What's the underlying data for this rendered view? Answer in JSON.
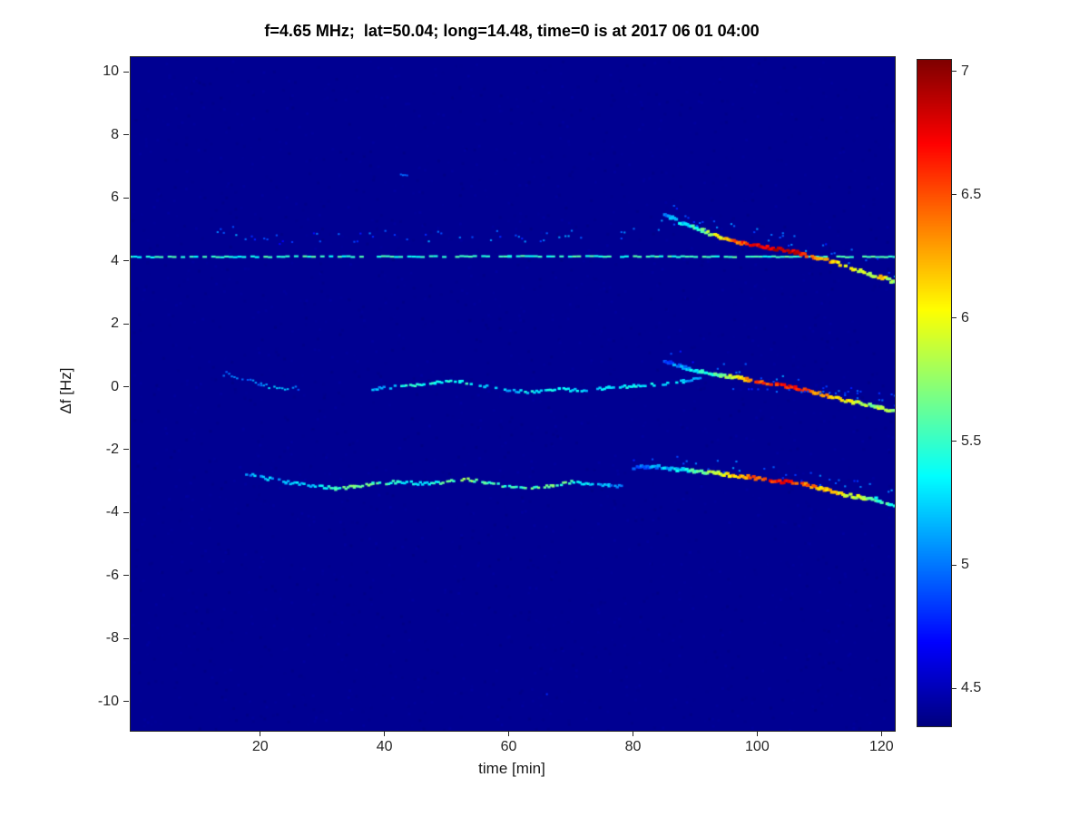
{
  "chart_data": {
    "type": "heatmap",
    "title": "f=4.65 MHz;  lat=50.04; long=14.48, time=0 is at 2017 06 01 04:00",
    "xlabel": "time [min]",
    "ylabel": "Δf [Hz]",
    "xlim": [
      -1,
      122
    ],
    "ylim": [
      -10.9,
      10.5
    ],
    "clim": [
      4.35,
      7.05
    ],
    "xticks": [
      20,
      40,
      60,
      80,
      100,
      120
    ],
    "yticks": [
      10,
      8,
      6,
      4,
      2,
      0,
      -2,
      -4,
      -6,
      -8,
      -10
    ],
    "grid": false,
    "colormap": "jet",
    "background_value": 4.4,
    "colorbar": {
      "position": "right",
      "ticks": [
        4.5,
        5,
        5.5,
        6,
        6.5,
        7
      ]
    },
    "traces": [
      {
        "name": "carrier-reference-line",
        "type": "dash",
        "step": 0.7,
        "gap": 0.22,
        "jitter_f": 0.03,
        "jitter_v": 0.25,
        "points": [
          [
            -1,
            4.15,
            5.45
          ],
          [
            60,
            4.17,
            5.5
          ],
          [
            122,
            4.15,
            5.5
          ]
        ]
      },
      {
        "name": "upper-band-speckle",
        "type": "speckle",
        "size": 2.2,
        "step": 0.5,
        "gap": 0.62,
        "jitter_f": 0.35,
        "jitter_v": 0.4,
        "points": [
          [
            12,
            5.0,
            4.85
          ],
          [
            16,
            4.95,
            5.0
          ],
          [
            20,
            4.75,
            4.9
          ],
          [
            25,
            4.7,
            4.8
          ],
          [
            30,
            4.8,
            4.85
          ],
          [
            36,
            4.75,
            4.9
          ],
          [
            42,
            4.85,
            4.95
          ],
          [
            48,
            4.8,
            5.0
          ],
          [
            54,
            4.9,
            5.05
          ],
          [
            60,
            4.75,
            4.9
          ],
          [
            66,
            4.8,
            4.9
          ],
          [
            72,
            4.85,
            4.95
          ],
          [
            78,
            4.9,
            5.0
          ],
          [
            83,
            5.1,
            5.0
          ],
          [
            87,
            5.3,
            5.1
          ]
        ]
      },
      {
        "name": "upper-descending-trace",
        "type": "line",
        "size": 4.2,
        "step": 0.3,
        "gap": 0.12,
        "jitter_f": 0.1,
        "jitter_v": 0.35,
        "points": [
          [
            85,
            5.5,
            5.0
          ],
          [
            88,
            5.2,
            5.3
          ],
          [
            91,
            5.0,
            5.6
          ],
          [
            94,
            4.75,
            6.1
          ],
          [
            97,
            4.6,
            6.5
          ],
          [
            100,
            4.5,
            6.7
          ],
          [
            103,
            4.4,
            6.9
          ],
          [
            106,
            4.3,
            6.8
          ],
          [
            109,
            4.15,
            6.5
          ],
          [
            112,
            4.0,
            6.2
          ],
          [
            115,
            3.8,
            6.0
          ],
          [
            118,
            3.6,
            5.9
          ],
          [
            120,
            3.5,
            6.1
          ],
          [
            122,
            3.35,
            5.7
          ]
        ]
      },
      {
        "name": "upper-descending-halo",
        "type": "speckle",
        "size": 2.2,
        "step": 0.45,
        "gap": 0.6,
        "jitter_f": 0.5,
        "jitter_v": 0.35,
        "points": [
          [
            86,
            5.6,
            4.8
          ],
          [
            92,
            5.2,
            4.9
          ],
          [
            98,
            4.9,
            5.0
          ],
          [
            104,
            4.7,
            5.0
          ],
          [
            110,
            4.4,
            4.9
          ],
          [
            116,
            4.1,
            4.9
          ],
          [
            122,
            3.7,
            5.0
          ]
        ]
      },
      {
        "name": "mid-early-speckle",
        "type": "speckle",
        "size": 2.5,
        "step": 0.45,
        "gap": 0.45,
        "jitter_f": 0.15,
        "jitter_v": 0.3,
        "points": [
          [
            14,
            0.45,
            4.9
          ],
          [
            17,
            0.3,
            5.0
          ],
          [
            20,
            0.1,
            5.1
          ],
          [
            23,
            -0.05,
            5.2
          ],
          [
            26,
            0.0,
            5.0
          ]
        ]
      },
      {
        "name": "mid-wavy-line",
        "type": "line",
        "size": 3.4,
        "step": 0.35,
        "gap": 0.3,
        "jitter_f": 0.08,
        "jitter_v": 0.3,
        "points": [
          [
            38,
            -0.05,
            5.15
          ],
          [
            43,
            0.05,
            5.35
          ],
          [
            48,
            0.15,
            5.5
          ],
          [
            52,
            0.2,
            5.45
          ],
          [
            56,
            0.05,
            5.3
          ],
          [
            60,
            -0.1,
            5.2
          ],
          [
            64,
            -0.15,
            5.4
          ],
          [
            68,
            -0.05,
            5.35
          ],
          [
            72,
            -0.1,
            5.3
          ],
          [
            76,
            0.0,
            5.2
          ],
          [
            80,
            0.05,
            5.35
          ],
          [
            84,
            0.1,
            5.3
          ],
          [
            88,
            0.2,
            5.2
          ],
          [
            91,
            0.35,
            5.1
          ]
        ]
      },
      {
        "name": "mid-descending-trace",
        "type": "line",
        "size": 4.2,
        "step": 0.3,
        "gap": 0.12,
        "jitter_f": 0.09,
        "jitter_v": 0.35,
        "points": [
          [
            85,
            0.85,
            4.9
          ],
          [
            88,
            0.65,
            5.1
          ],
          [
            91,
            0.5,
            5.4
          ],
          [
            94,
            0.4,
            5.7
          ],
          [
            97,
            0.3,
            6.1
          ],
          [
            100,
            0.2,
            6.5
          ],
          [
            103,
            0.1,
            6.7
          ],
          [
            106,
            0.0,
            6.7
          ],
          [
            109,
            -0.15,
            6.4
          ],
          [
            112,
            -0.3,
            6.2
          ],
          [
            115,
            -0.45,
            6.0
          ],
          [
            118,
            -0.55,
            5.7
          ],
          [
            120,
            -0.65,
            5.9
          ],
          [
            122,
            -0.75,
            5.6
          ]
        ]
      },
      {
        "name": "mid-descending-halo",
        "type": "speckle",
        "size": 2.2,
        "step": 0.5,
        "gap": 0.65,
        "jitter_f": 0.4,
        "jitter_v": 0.3,
        "points": [
          [
            86,
            1.0,
            4.8
          ],
          [
            92,
            0.8,
            4.9
          ],
          [
            98,
            0.55,
            5.0
          ],
          [
            104,
            0.3,
            5.0
          ],
          [
            110,
            0.05,
            4.9
          ],
          [
            116,
            -0.25,
            4.9
          ],
          [
            122,
            -0.5,
            4.9
          ]
        ]
      },
      {
        "name": "mid-faint-tail",
        "type": "speckle",
        "size": 2.2,
        "step": 0.5,
        "gap": 0.7,
        "jitter_f": 0.12,
        "jitter_v": 0.2,
        "points": [
          [
            95,
            -0.05,
            4.8
          ],
          [
            105,
            -0.1,
            4.9
          ],
          [
            115,
            -0.15,
            4.8
          ],
          [
            122,
            -0.2,
            4.9
          ]
        ]
      },
      {
        "name": "lower-wavy-line",
        "type": "line",
        "size": 3.4,
        "step": 0.35,
        "gap": 0.25,
        "jitter_f": 0.09,
        "jitter_v": 0.3,
        "points": [
          [
            17,
            -2.7,
            5.0
          ],
          [
            20,
            -2.85,
            5.2
          ],
          [
            24,
            -3.0,
            5.15
          ],
          [
            28,
            -3.1,
            5.25
          ],
          [
            32,
            -3.2,
            5.5
          ],
          [
            35,
            -3.15,
            5.75
          ],
          [
            38,
            -3.05,
            5.6
          ],
          [
            42,
            -3.0,
            5.45
          ],
          [
            46,
            -3.05,
            5.3
          ],
          [
            50,
            -3.0,
            5.6
          ],
          [
            53,
            -2.9,
            5.7
          ],
          [
            56,
            -3.0,
            5.55
          ],
          [
            60,
            -3.15,
            5.5
          ],
          [
            64,
            -3.2,
            5.6
          ],
          [
            67,
            -3.1,
            5.65
          ],
          [
            70,
            -3.0,
            5.5
          ],
          [
            73,
            -3.05,
            5.3
          ],
          [
            76,
            -3.1,
            5.15
          ],
          [
            78,
            -3.15,
            5.0
          ]
        ]
      },
      {
        "name": "lower-descending-trace",
        "type": "line",
        "size": 4.2,
        "step": 0.3,
        "gap": 0.12,
        "jitter_f": 0.1,
        "jitter_v": 0.35,
        "points": [
          [
            80,
            -2.55,
            4.9
          ],
          [
            84,
            -2.5,
            5.1
          ],
          [
            87,
            -2.6,
            5.3
          ],
          [
            90,
            -2.65,
            5.5
          ],
          [
            93,
            -2.7,
            5.8
          ],
          [
            96,
            -2.8,
            6.1
          ],
          [
            99,
            -2.85,
            6.4
          ],
          [
            102,
            -2.95,
            6.6
          ],
          [
            105,
            -3.0,
            6.7
          ],
          [
            108,
            -3.1,
            6.4
          ],
          [
            111,
            -3.25,
            6.2
          ],
          [
            114,
            -3.4,
            6.0
          ],
          [
            117,
            -3.5,
            5.8
          ],
          [
            119,
            -3.55,
            5.5
          ],
          [
            122,
            -3.8,
            5.5
          ]
        ]
      },
      {
        "name": "lower-descending-halo",
        "type": "speckle",
        "size": 2.2,
        "step": 0.5,
        "gap": 0.65,
        "jitter_f": 0.4,
        "jitter_v": 0.3,
        "points": [
          [
            80,
            -2.3,
            4.8
          ],
          [
            86,
            -2.35,
            4.9
          ],
          [
            92,
            -2.45,
            5.0
          ],
          [
            98,
            -2.55,
            5.0
          ],
          [
            104,
            -2.7,
            4.9
          ],
          [
            110,
            -2.95,
            4.9
          ],
          [
            116,
            -3.15,
            4.9
          ],
          [
            122,
            -3.4,
            5.0
          ]
        ]
      },
      {
        "name": "isolated-dot-high",
        "type": "speckle",
        "size": 2.2,
        "step": 0.4,
        "gap": 0.2,
        "jitter_f": 0.08,
        "jitter_v": 0.15,
        "points": [
          [
            42.5,
            6.8,
            4.95
          ],
          [
            43.5,
            6.75,
            4.9
          ]
        ]
      },
      {
        "name": "isolated-dot-low",
        "type": "speckle",
        "size": 2.0,
        "step": 0.4,
        "gap": 0.4,
        "jitter_f": 0.1,
        "jitter_v": 0.1,
        "points": [
          [
            66,
            -9.7,
            4.8
          ],
          [
            67,
            -9.6,
            4.75
          ]
        ]
      }
    ]
  }
}
